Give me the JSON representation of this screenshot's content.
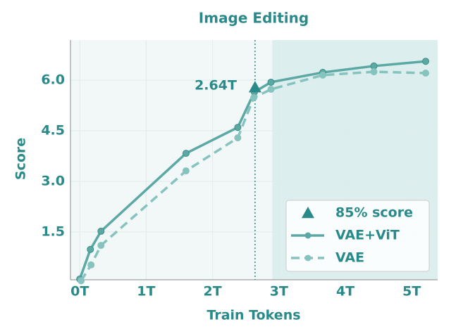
{
  "chart_data": {
    "type": "line",
    "title": "Image Editing",
    "x_label": "Train Tokens",
    "y_label": "Score",
    "xlim": [
      -0.14,
      5.39
    ],
    "ylim": [
      0.08,
      7.19
    ],
    "xticks": [
      {
        "value": 0,
        "label": "0T"
      },
      {
        "value": 1,
        "label": "1T"
      },
      {
        "value": 2,
        "label": "2T"
      },
      {
        "value": 3,
        "label": "3T"
      },
      {
        "value": 4,
        "label": "4T"
      },
      {
        "value": 5,
        "label": "5T"
      }
    ],
    "yticks": [
      1.5,
      {
        "value": 3,
        "label": "3.0"
      },
      4.5,
      {
        "value": 6,
        "label": "6.0"
      }
    ],
    "grid": true,
    "shaded_from": 2.9,
    "legend": "lower right",
    "series": [
      {
        "name": "VAE+ViT",
        "color": "#5ba8a4",
        "dashed": false,
        "x": [
          0.0,
          0.16,
          0.32,
          1.6,
          2.38,
          2.63,
          2.88,
          3.66,
          4.43,
          5.21
        ],
        "values": [
          0.1,
          0.98,
          1.52,
          3.83,
          4.6,
          5.65,
          5.94,
          6.23,
          6.42,
          6.56
        ]
      },
      {
        "name": "VAE",
        "color": "#86c3bf",
        "dashed": true,
        "x": [
          0.02,
          0.17,
          0.32,
          1.6,
          2.38,
          2.62,
          2.88,
          3.66,
          4.43,
          5.21
        ],
        "values": [
          0.05,
          0.52,
          1.1,
          3.31,
          4.29,
          5.48,
          5.73,
          6.15,
          6.25,
          6.21
        ]
      }
    ],
    "marker": {
      "name": "85% score",
      "x": 2.64,
      "y": 5.79,
      "annotation": "2.64T",
      "color": "#2a8a8a"
    }
  }
}
